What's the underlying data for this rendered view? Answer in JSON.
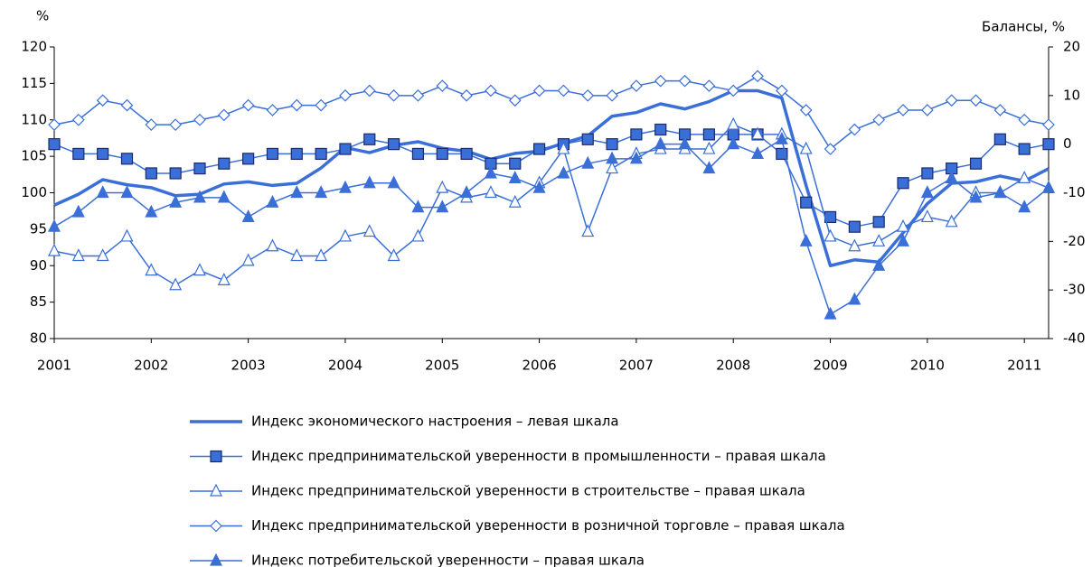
{
  "chart_data": {
    "type": "line",
    "y_label": "%",
    "y2_label": "Балансы, %",
    "x": [
      2001,
      2001.25,
      2001.5,
      2001.75,
      2002,
      2002.25,
      2002.5,
      2002.75,
      2003,
      2003.25,
      2003.5,
      2003.75,
      2004,
      2004.25,
      2004.5,
      2004.75,
      2005,
      2005.25,
      2005.5,
      2005.75,
      2006,
      2006.25,
      2006.5,
      2006.75,
      2007,
      2007.25,
      2007.5,
      2007.75,
      2008,
      2008.25,
      2008.5,
      2008.75,
      2009,
      2009.25,
      2009.5,
      2009.75,
      2010,
      2010.25,
      2010.5,
      2010.75,
      2011,
      2011.25
    ],
    "xlim": [
      2001,
      2011.25
    ],
    "xticks": [
      2001,
      2002,
      2003,
      2004,
      2005,
      2006,
      2007,
      2008,
      2009,
      2010,
      2011
    ],
    "ylim": [
      80,
      120
    ],
    "yticks": [
      80,
      85,
      90,
      95,
      100,
      105,
      110,
      115,
      120
    ],
    "y2lim": [
      -40,
      20
    ],
    "y2ticks": [
      -40,
      -30,
      -20,
      -10,
      0,
      10,
      20
    ],
    "series": [
      {
        "name": "Индекс экономического настроения –  левая шкала",
        "color": "#3a6fd8",
        "marker": "none",
        "width": 3.5,
        "values": [
          98.3,
          99.8,
          101.8,
          101.1,
          100.7,
          99.6,
          99.8,
          101.2,
          101.5,
          101.0,
          101.3,
          103.4,
          106.2,
          105.5,
          106.5,
          107.0,
          106.1,
          105.7,
          104.6,
          105.4,
          105.7,
          106.8,
          107.8,
          110.5,
          111.0,
          112.2,
          111.5,
          112.5,
          114.0,
          114.0,
          113.0,
          101.0,
          90.0,
          90.8,
          90.5,
          94.5,
          98.5,
          101.3,
          101.5,
          102.3,
          101.6,
          103.3
        ]
      },
      {
        "name": "Индекс предпринимательской уверенности в промышленности –  правая шкала",
        "color": "#3a6fd8",
        "marker": "square",
        "width": 1.5,
        "axis": "y2",
        "values": [
          0,
          -2,
          -2,
          -3,
          -6,
          -6,
          -5,
          -4,
          -3,
          -2,
          -2,
          -2,
          -1,
          1,
          0,
          -2,
          -2,
          -2,
          -4,
          -4,
          -1,
          0,
          1,
          0,
          2,
          3,
          2,
          2,
          2,
          2,
          -2,
          -12,
          -15,
          -17,
          -16,
          -8,
          -6,
          -5,
          -4,
          1,
          -1,
          0
        ]
      },
      {
        "name": "Индекс предпринимательской уверенности в строительстве –  правая шкала",
        "color": "#3a6fd8",
        "marker": "triangle-open",
        "width": 1.5,
        "axis": "y2",
        "values": [
          -22,
          -23,
          -23,
          -19,
          -26,
          -29,
          -26,
          -28,
          -24,
          -21,
          -23,
          -23,
          -19,
          -18,
          -23,
          -19,
          -9,
          -11,
          -10,
          -12,
          -8,
          -1,
          -18,
          -5,
          -2,
          -1,
          -1,
          -1,
          4,
          2,
          2,
          -1,
          -19,
          -21,
          -20,
          -17,
          -15,
          -16,
          -10,
          -10,
          -7,
          -9
        ]
      },
      {
        "name": "Индекс предпринимательской уверенности в розничной торговле –  правая шкала",
        "color": "#3a6fd8",
        "marker": "diamond-open",
        "width": 1.5,
        "axis": "y2",
        "values": [
          4,
          5,
          9,
          8,
          4,
          4,
          5,
          6,
          8,
          7,
          8,
          8,
          10,
          11,
          10,
          10,
          12,
          10,
          11,
          9,
          11,
          11,
          10,
          10,
          12,
          13,
          13,
          12,
          11,
          14,
          11,
          7,
          -1,
          3,
          5,
          7,
          7,
          9,
          9,
          7,
          5,
          4
        ]
      },
      {
        "name": "Индекс потребительской  уверенности –  правая шкала",
        "color": "#3a6fd8",
        "marker": "triangle",
        "width": 1.5,
        "axis": "y2",
        "values": [
          -17,
          -14,
          -10,
          -10,
          -14,
          -12,
          -11,
          -11,
          -15,
          -12,
          -10,
          -10,
          -9,
          -8,
          -8,
          -13,
          -13,
          -10,
          -6,
          -7,
          -9,
          -6,
          -4,
          -3,
          -3,
          0,
          0,
          -5,
          0,
          -2,
          1,
          -20,
          -35,
          -32,
          -25,
          -20,
          -10,
          -7,
          -11,
          -10,
          -13,
          -9
        ]
      }
    ]
  }
}
